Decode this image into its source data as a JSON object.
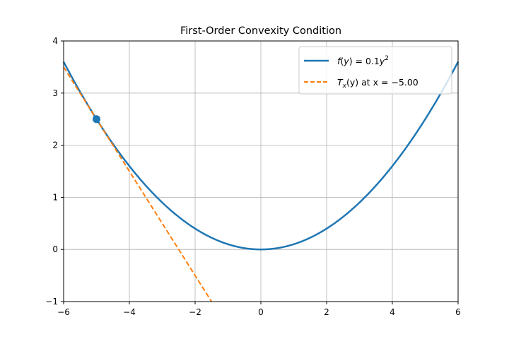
{
  "chart_data": {
    "type": "line",
    "title": "First-Order Convexity Condition",
    "xlabel": "",
    "ylabel": "",
    "xlim": [
      -6,
      6
    ],
    "ylim": [
      -1,
      4
    ],
    "xticks": [
      "−6",
      "−4",
      "−2",
      "0",
      "2",
      "4",
      "6"
    ],
    "xtick_values": [
      -6,
      -4,
      -2,
      0,
      2,
      4,
      6
    ],
    "yticks": [
      "−1",
      "0",
      "1",
      "2",
      "3",
      "4"
    ],
    "ytick_values": [
      -1,
      0,
      1,
      2,
      3,
      4
    ],
    "grid": true,
    "legend_position": "upper right",
    "series": [
      {
        "name": "f(y) = 0.1y²",
        "style": "solid",
        "color": "#1f77b4",
        "function": "0.1*y^2",
        "x": [
          -6,
          -5,
          -4,
          -3,
          -2,
          -1,
          0,
          1,
          2,
          3,
          4,
          5,
          6
        ],
        "values": [
          3.6,
          2.5,
          1.6,
          0.9,
          0.4,
          0.1,
          0.0,
          0.1,
          0.4,
          0.9,
          1.6,
          2.5,
          3.6
        ]
      },
      {
        "name": "T_x(y) at x = −5.00",
        "style": "dashed",
        "color": "#ff7f0e",
        "function": "-y - 2.5",
        "x": [
          -6,
          -5,
          -4,
          -3,
          -2,
          -1.5
        ],
        "values": [
          3.5,
          2.5,
          1.5,
          0.5,
          -0.5,
          -1.0
        ]
      }
    ],
    "annotations": [
      {
        "type": "point",
        "x": -5,
        "y": 2.5,
        "color": "#1f77b4"
      }
    ]
  },
  "legend": {
    "item1": "f(y) = 0.1y²",
    "item2_prefix": "T",
    "item2_sub": "x",
    "item2_rest": "(y) at x = −5.00"
  }
}
